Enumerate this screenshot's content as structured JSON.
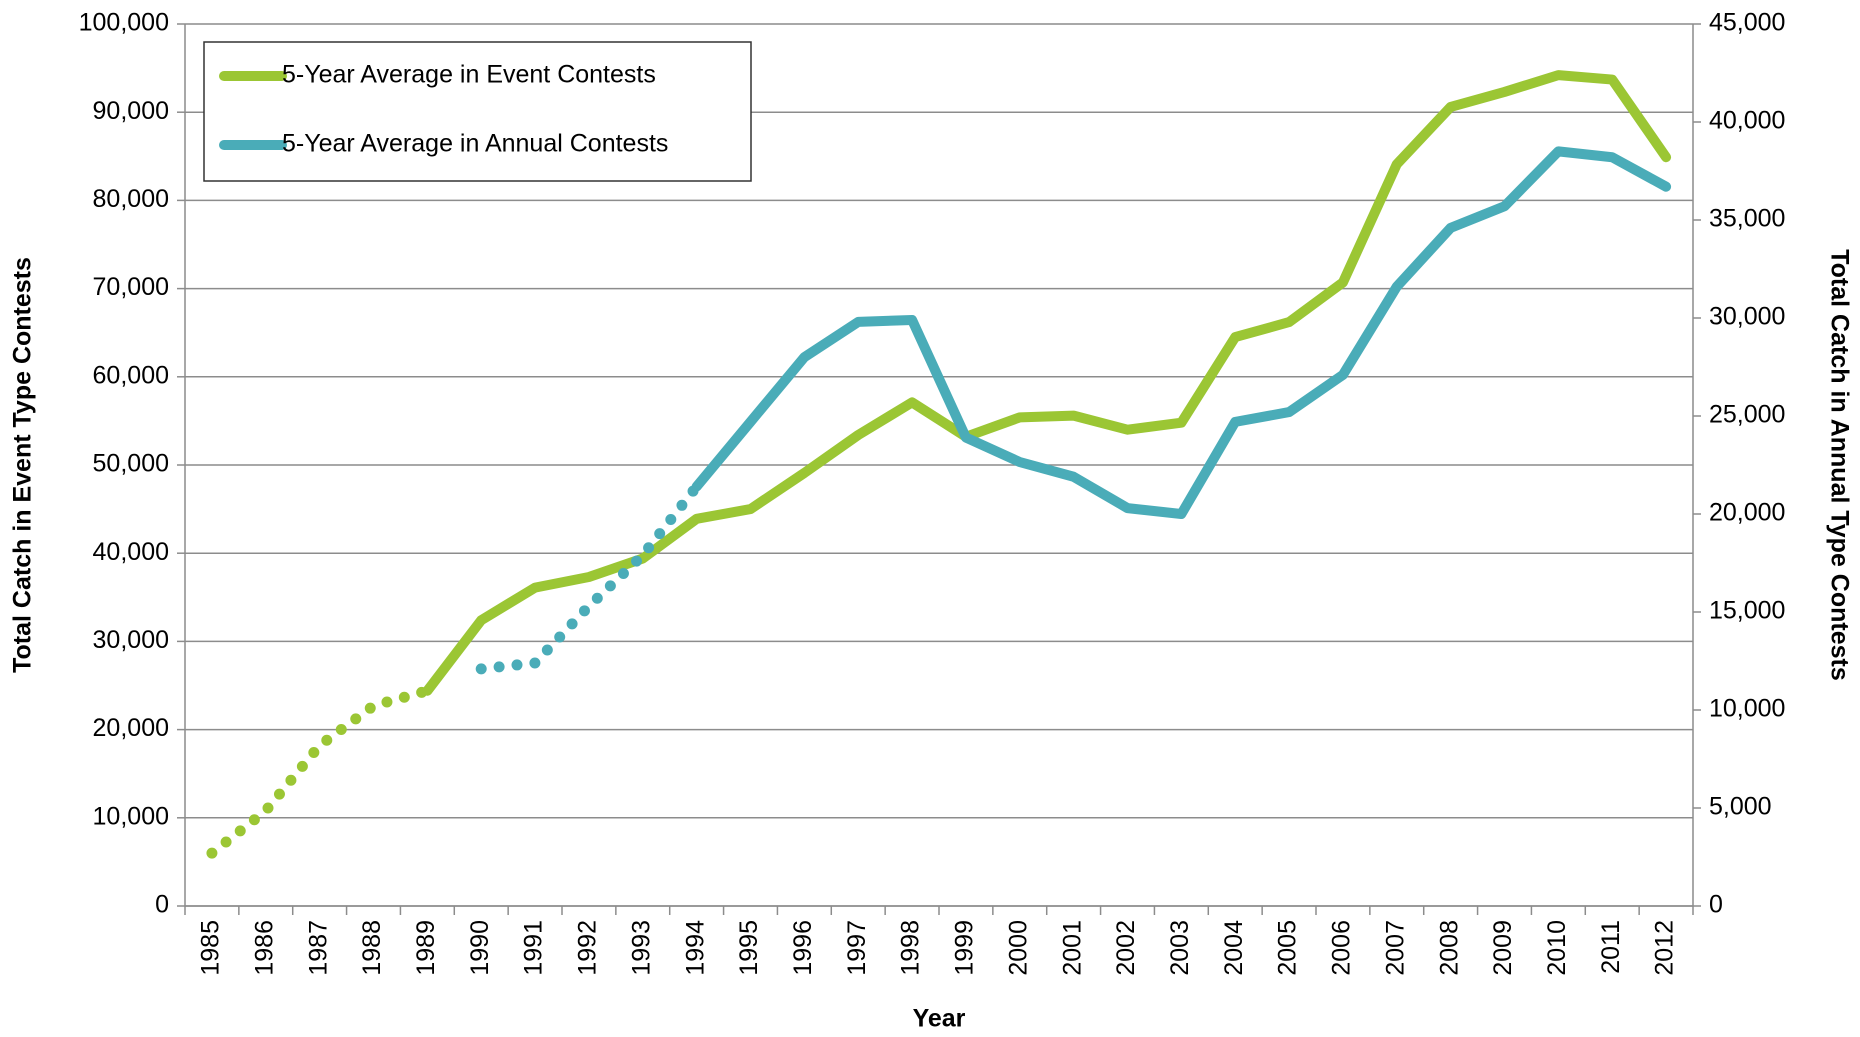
{
  "chart_data": {
    "type": "line",
    "x_label": "Year",
    "y_label": "Total Catch in Event Type Contests",
    "y2_label": "Total Catch in Annual Type Contests",
    "categories": [
      "1985",
      "1986",
      "1987",
      "1988",
      "1989",
      "1990",
      "1991",
      "1992",
      "1993",
      "1994",
      "1995",
      "1996",
      "1997",
      "1998",
      "1999",
      "2000",
      "2001",
      "2002",
      "2003",
      "2004",
      "2005",
      "2006",
      "2007",
      "2008",
      "2009",
      "2010",
      "2011",
      "2012"
    ],
    "series": [
      {
        "name": "5-Year Average in Event Contests",
        "color": "#9bc634",
        "dotted_through": "1989",
        "values": [
          6000,
          10800,
          18200,
          22700,
          24400,
          32400,
          36100,
          37300,
          39400,
          43900,
          45000,
          49100,
          53400,
          57100,
          53200,
          55400,
          55600,
          54000,
          54800,
          64500,
          66200,
          70700,
          84100,
          90600,
          92300,
          94200,
          93700,
          84900
        ]
      },
      {
        "name": "5-Year Average in Annual Contests",
        "color": "#4aacb8",
        "axis": "y2",
        "dotted_through": "1994",
        "values": [
          null,
          null,
          null,
          null,
          null,
          12100,
          12400,
          15300,
          17900,
          21400,
          24700,
          28000,
          29800,
          29900,
          23900,
          22650,
          21900,
          20300,
          20000,
          24700,
          25200,
          27100,
          31600,
          34600,
          35700,
          38500,
          38200,
          36700
        ]
      }
    ],
    "ylim": [
      0,
      100000
    ],
    "yticks": [
      0,
      {
        "value": 10000,
        "label": "10,000"
      },
      {
        "value": 20000,
        "label": "20,000"
      },
      {
        "value": 30000,
        "label": "30,000"
      },
      {
        "value": 40000,
        "label": "40,000"
      },
      {
        "value": 50000,
        "label": "50,000"
      },
      {
        "value": 60000,
        "label": "60,000"
      },
      {
        "value": 70000,
        "label": "70,000"
      },
      {
        "value": 80000,
        "label": "80,000"
      },
      {
        "value": 90000,
        "label": "90,000"
      },
      {
        "value": 100000,
        "label": "100,000"
      }
    ],
    "y2lim": [
      0,
      45000
    ],
    "y2ticks": [
      0,
      {
        "value": 5000,
        "label": "5,000"
      },
      {
        "value": 10000,
        "label": "10,000"
      },
      {
        "value": 15000,
        "label": "15,000"
      },
      {
        "value": 20000,
        "label": "20,000"
      },
      {
        "value": 25000,
        "label": "25,000"
      },
      {
        "value": 30000,
        "label": "30,000"
      },
      {
        "value": 35000,
        "label": "35,000"
      },
      {
        "value": 40000,
        "label": "40,000"
      },
      {
        "value": 45000,
        "label": "45,000"
      }
    ],
    "grid": true,
    "legend": "upper left"
  }
}
